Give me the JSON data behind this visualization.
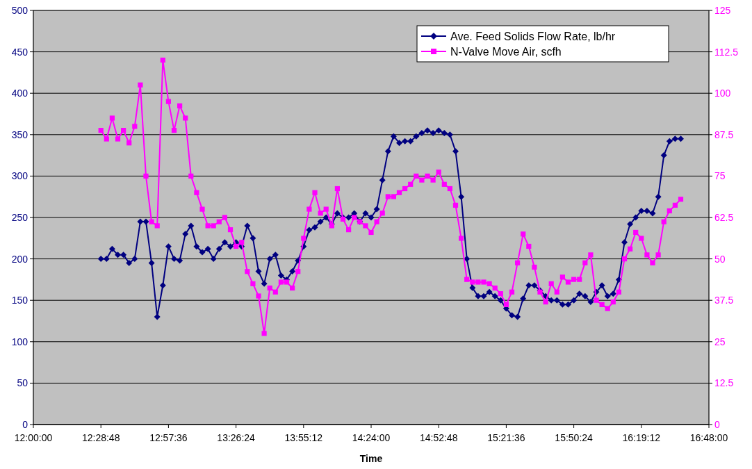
{
  "chart_data": {
    "type": "line",
    "xlabel": "Time",
    "x": [
      12.48,
      12.52,
      12.56,
      12.6,
      12.64,
      12.68,
      12.72,
      12.76,
      12.8,
      12.84,
      12.88,
      12.92,
      12.96,
      13,
      13.04,
      13.08,
      13.12,
      13.16,
      13.2,
      13.24,
      13.28,
      13.32,
      13.36,
      13.4,
      13.44,
      13.48,
      13.52,
      13.56,
      13.6,
      13.64,
      13.68,
      13.72,
      13.76,
      13.8,
      13.84,
      13.88,
      13.92,
      13.96,
      14,
      14.04,
      14.08,
      14.12,
      14.16,
      14.2,
      14.24,
      14.28,
      14.32,
      14.36,
      14.4,
      14.44,
      14.48,
      14.52,
      14.56,
      14.6,
      14.64,
      14.68,
      14.72,
      14.76,
      14.8,
      14.84,
      14.88,
      14.92,
      14.96,
      15,
      15.04,
      15.08,
      15.12,
      15.16,
      15.2,
      15.24,
      15.28,
      15.32,
      15.36,
      15.4,
      15.44,
      15.48,
      15.52,
      15.56,
      15.6,
      15.64,
      15.68,
      15.72,
      15.76,
      15.8,
      15.84,
      15.88,
      15.92,
      15.96,
      16,
      16.04,
      16.08,
      16.12,
      16.16,
      16.2,
      16.24,
      16.28,
      16.32,
      16.36,
      16.4,
      16.44,
      16.48,
      16.52,
      16.56,
      16.6
    ],
    "xlim": [
      12,
      16.8
    ],
    "xticks": [
      {
        "value": 12,
        "label": "12:00:00"
      },
      {
        "value": 12.48,
        "label": "12:28:48"
      },
      {
        "value": 12.96,
        "label": "12:57:36"
      },
      {
        "value": 13.44,
        "label": "13:26:24"
      },
      {
        "value": 13.92,
        "label": "13:55:12"
      },
      {
        "value": 14.4,
        "label": "14:24:00"
      },
      {
        "value": 14.88,
        "label": "14:52:48"
      },
      {
        "value": 15.36,
        "label": "15:21:36"
      },
      {
        "value": 15.84,
        "label": "15:50:24"
      },
      {
        "value": 16.32,
        "label": "16:19:12"
      },
      {
        "value": 16.8,
        "label": "16:48:00"
      }
    ],
    "ylim": [
      0,
      500
    ],
    "yticks": [
      0,
      50,
      100,
      150,
      200,
      250,
      300,
      350,
      400,
      450,
      500
    ],
    "y2lim": [
      0,
      125
    ],
    "y2ticks": [
      0,
      12.5,
      25,
      37.5,
      50,
      62.5,
      75,
      87.5,
      100,
      112.5,
      125
    ],
    "grid": "y",
    "legend": "top right",
    "series": [
      {
        "name": "Ave. Feed Solids Flow Rate, lb/hr",
        "color": "#000080",
        "marker": "diamond",
        "values": [
          200,
          200,
          212,
          205,
          205,
          195,
          200,
          245,
          245,
          195,
          130,
          168,
          215,
          200,
          198,
          230,
          240,
          215,
          208,
          212,
          200,
          212,
          220,
          215,
          220,
          215,
          240,
          225,
          185,
          170,
          200,
          205,
          180,
          175,
          185,
          198,
          215,
          235,
          238,
          245,
          250,
          242,
          255,
          250,
          250,
          255,
          245,
          255,
          250,
          260,
          295,
          330,
          348,
          340,
          342,
          342,
          348,
          352,
          355,
          352,
          355,
          352,
          350,
          330,
          275,
          200,
          165,
          155,
          155,
          160,
          155,
          150,
          140,
          132,
          130,
          152,
          168,
          168,
          162,
          155,
          150,
          150,
          145,
          145,
          150,
          158,
          155,
          148,
          160,
          168,
          155,
          158,
          175,
          220,
          242,
          250,
          258,
          258,
          255,
          275,
          325,
          342,
          345,
          345
        ]
      },
      {
        "name": "N-Valve Move Air, scfh",
        "color": "#ff00ff",
        "marker": "square",
        "axis": "y2",
        "values": [
          88.8,
          86.2,
          92.5,
          86.2,
          88.8,
          85,
          90,
          102.5,
          75,
          61.2,
          60,
          110,
          97.5,
          88.8,
          96.2,
          92.5,
          75,
          70,
          65,
          60,
          60,
          61.2,
          62.5,
          58.8,
          53.8,
          55,
          46.2,
          42.5,
          38.8,
          27.5,
          41.2,
          40,
          43,
          43,
          41.2,
          46.2,
          56.2,
          65,
          70,
          63.8,
          65,
          60,
          71.2,
          62,
          58.8,
          62.5,
          61.2,
          60,
          58,
          61.2,
          63.8,
          68.8,
          68.8,
          70,
          71.2,
          72.5,
          75,
          73.8,
          75,
          73.8,
          76.2,
          72.5,
          71.2,
          66.2,
          56.2,
          43.8,
          43,
          43,
          43,
          42.5,
          41.2,
          39.5,
          36.2,
          40,
          48.8,
          57.5,
          53.8,
          47.5,
          40,
          37,
          42.5,
          40,
          44.5,
          43,
          43.8,
          43.8,
          48.8,
          51.2,
          37.5,
          36.2,
          35,
          37,
          40,
          50,
          53,
          58,
          56.2,
          51.2,
          48.8,
          51.2,
          61.2,
          64.5,
          66.2,
          68
        ]
      }
    ]
  }
}
